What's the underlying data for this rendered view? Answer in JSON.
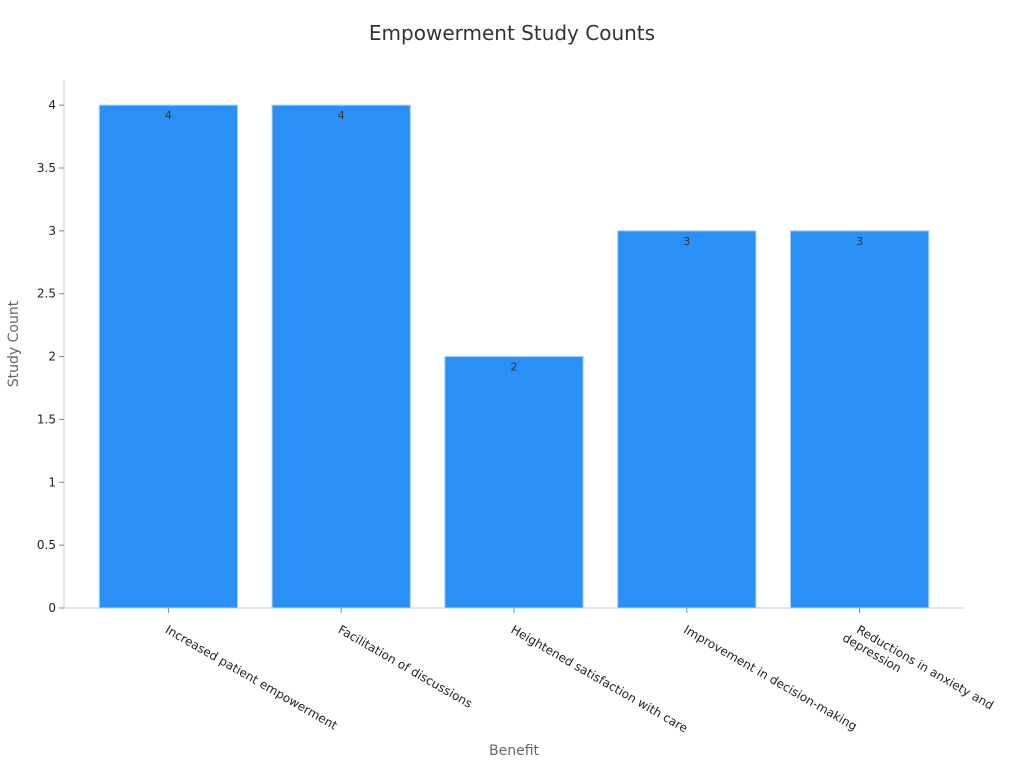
{
  "chart_data": {
    "type": "bar",
    "title": "Empowerment Study Counts",
    "xlabel": "Benefit",
    "ylabel": "Study Count",
    "categories": [
      [
        "Increased patient empowerment"
      ],
      [
        "Facilitation of discussions"
      ],
      [
        "Heightened satisfaction with care"
      ],
      [
        "Improvement in decision-making"
      ],
      [
        "Reductions in anxiety and",
        "depression"
      ]
    ],
    "values": [
      4,
      4,
      2,
      3,
      3
    ],
    "data_labels": [
      "4",
      "4",
      "2",
      "3",
      "3"
    ],
    "ylim": [
      0,
      4.2
    ],
    "yticks": [
      0,
      0.5,
      1,
      1.5,
      2,
      2.5,
      3,
      3.5,
      4
    ],
    "ytick_labels": [
      "0",
      "0.5",
      "1",
      "1.5",
      "2",
      "2.5",
      "3",
      "3.5",
      "4"
    ],
    "bar_color": "#2b90f5",
    "bar_edge_color": "#a9cdf7",
    "axis_color": "#cccccc",
    "grid": false
  }
}
